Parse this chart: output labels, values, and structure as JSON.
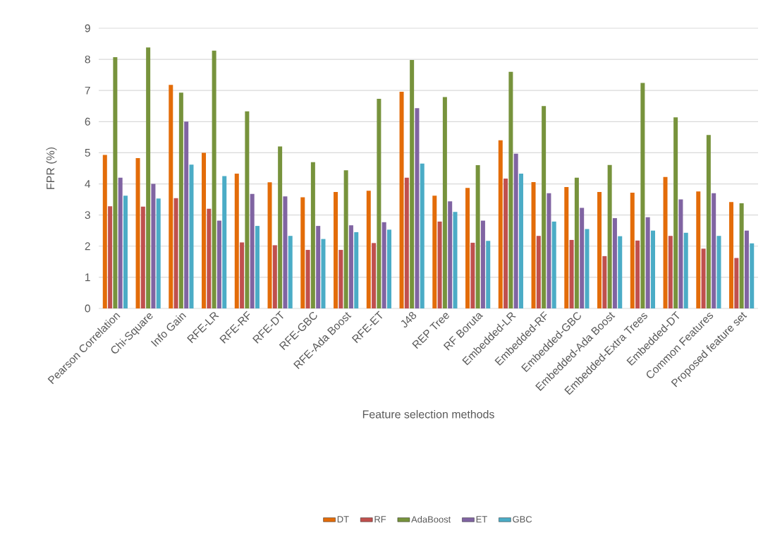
{
  "chart_data": {
    "type": "bar",
    "xlabel": "Feature selection methods",
    "ylabel": "FPR (%)",
    "categories": [
      "Pearson Correlation",
      "Chi-Square",
      "Info Gain",
      "RFE-LR",
      "RFE-RF",
      "RFE-DT",
      "RFE-GBC",
      "RFE-Ada Boost",
      "RFE-ET",
      "J48",
      "REP Tree",
      "RF Boruta",
      "Embedded-LR",
      "Embedded-RF",
      "Embedded-GBC",
      "Embedded-Ada Boost",
      "Embedded-Extra Trees",
      "Embedded-DT",
      "Common Features",
      "Proposed feature set"
    ],
    "series": [
      {
        "name": "DT",
        "color": "#e36c09",
        "values": [
          4.93,
          4.83,
          7.18,
          5.0,
          4.33,
          4.05,
          3.57,
          3.74,
          3.78,
          6.96,
          3.62,
          3.87,
          5.4,
          4.06,
          3.9,
          3.74,
          3.72,
          4.22,
          3.76,
          3.42
        ]
      },
      {
        "name": "RF",
        "color": "#c0504d",
        "values": [
          3.28,
          3.27,
          3.54,
          3.2,
          2.12,
          2.03,
          1.88,
          1.88,
          2.1,
          4.2,
          2.79,
          2.11,
          4.17,
          2.33,
          2.2,
          1.68,
          2.18,
          2.33,
          1.92,
          1.62
        ]
      },
      {
        "name": "AdaBoost",
        "color": "#77933c",
        "values": [
          8.07,
          8.38,
          6.93,
          8.28,
          6.33,
          5.2,
          4.7,
          4.44,
          6.73,
          7.98,
          6.79,
          4.6,
          7.6,
          6.5,
          4.2,
          4.61,
          7.24,
          6.14,
          5.57,
          3.38
        ]
      },
      {
        "name": "ET",
        "color": "#8064a2",
        "values": [
          4.2,
          4.0,
          6.0,
          2.82,
          3.68,
          3.6,
          2.65,
          2.67,
          2.77,
          6.43,
          3.44,
          2.82,
          4.97,
          3.7,
          3.23,
          2.9,
          2.93,
          3.5,
          3.7,
          2.5
        ]
      },
      {
        "name": "GBC",
        "color": "#4bacc6",
        "values": [
          3.62,
          3.53,
          4.62,
          4.25,
          2.65,
          2.33,
          2.23,
          2.45,
          2.53,
          4.65,
          3.1,
          2.17,
          4.33,
          2.79,
          2.55,
          2.32,
          2.5,
          2.43,
          2.33,
          2.09
        ]
      }
    ],
    "ylim": [
      0,
      9
    ],
    "yticks": [
      0,
      1,
      2,
      3,
      4,
      5,
      6,
      7,
      8,
      9
    ],
    "grid": "y",
    "legend": "bottom"
  }
}
